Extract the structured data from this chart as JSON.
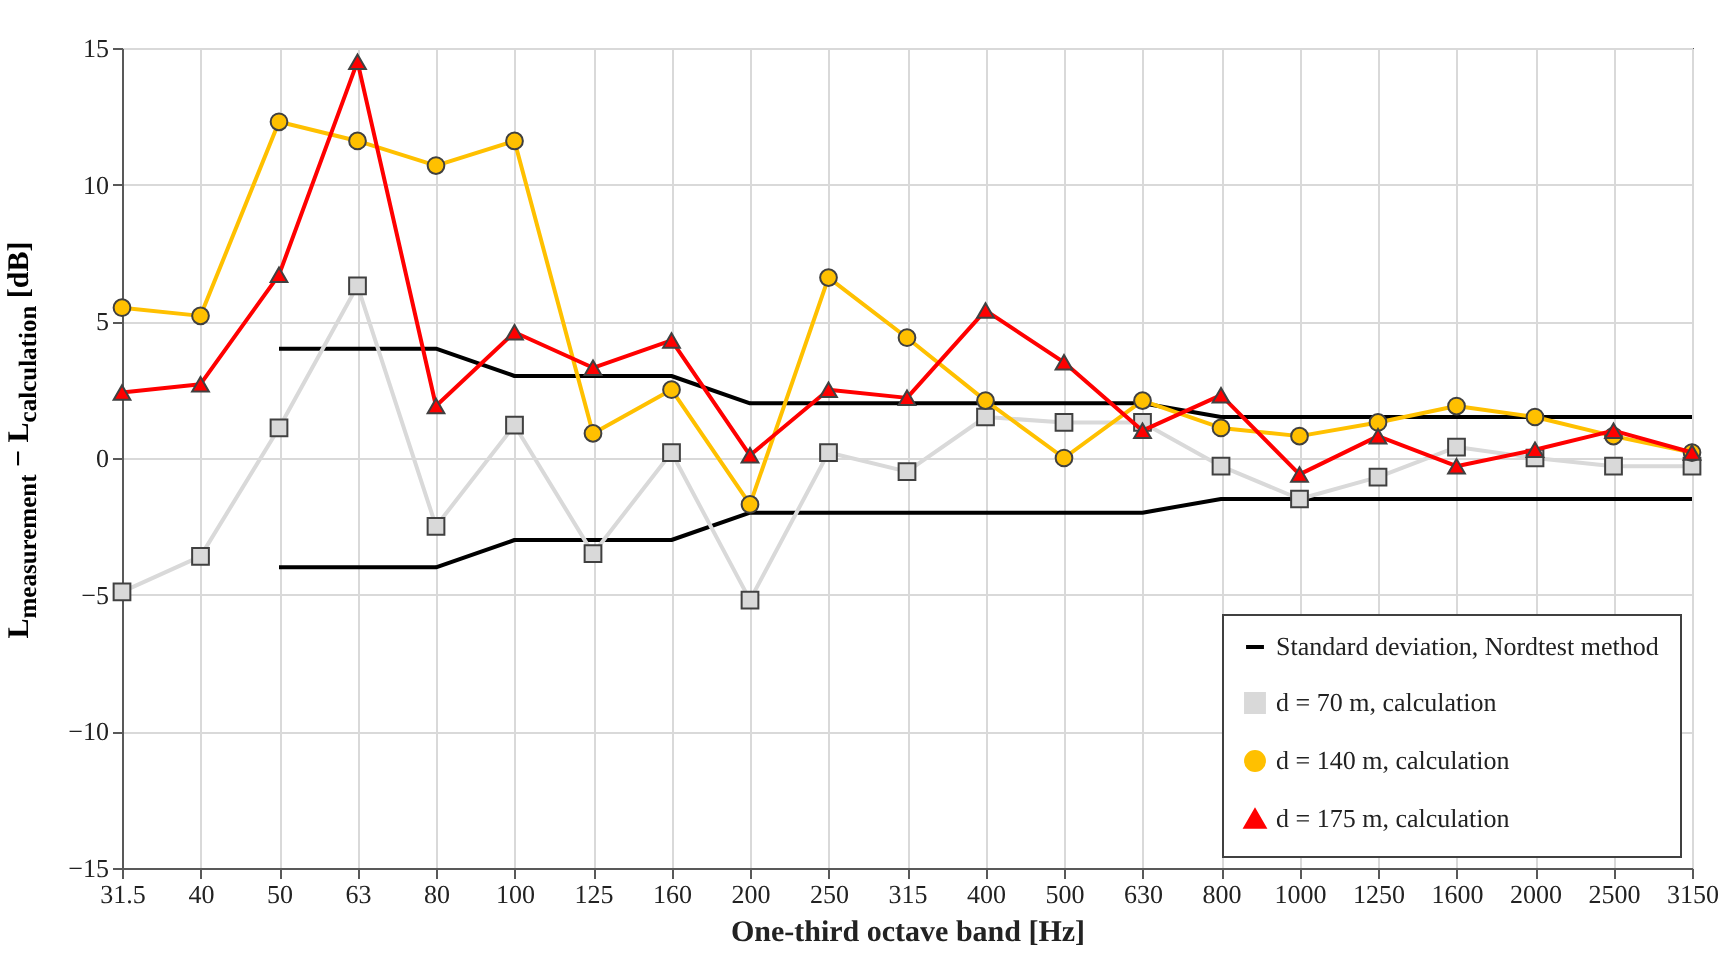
{
  "chart_data": {
    "type": "line",
    "xlabel": "One-third octave band [Hz]",
    "ylabel": "L$_{measurement}$ − L$_{calculation}$ [dB]",
    "categories": [
      "31.5",
      "40",
      "50",
      "63",
      "80",
      "100",
      "125",
      "160",
      "200",
      "250",
      "315",
      "400",
      "500",
      "630",
      "800",
      "1000",
      "1250",
      "1600",
      "2000",
      "2500",
      "3150"
    ],
    "ylim": [
      -15,
      15
    ],
    "yticks": [
      -15,
      -10,
      -5,
      0,
      5,
      10,
      15
    ],
    "grid": true,
    "legend": "bottom right",
    "series": [
      {
        "name": "Standard deviation, Nordtest method",
        "color": "#000000",
        "marker": "none",
        "values": [
          null,
          null,
          4,
          4,
          4,
          3,
          3,
          3,
          2,
          2,
          2,
          2,
          2,
          2,
          1.5,
          1.5,
          1.5,
          1.5,
          1.5,
          1.5,
          1.5
        ]
      },
      {
        "color": "#000000",
        "marker": "none",
        "values": [
          null,
          null,
          -4,
          -4,
          -4,
          -3,
          -3,
          -3,
          -2,
          -2,
          -2,
          -2,
          -2,
          -2,
          -1.5,
          -1.5,
          -1.5,
          -1.5,
          -1.5,
          -1.5,
          -1.5
        ]
      },
      {
        "name": "d = 70 m, calculation",
        "color": "#d9d9d9",
        "marker": "square",
        "values": [
          -4.9,
          -3.6,
          1.1,
          6.3,
          -2.5,
          1.2,
          -3.5,
          0.2,
          -5.2,
          0.2,
          -0.5,
          1.5,
          1.3,
          1.3,
          -0.3,
          -1.5,
          -0.7,
          0.4,
          0.0,
          -0.3,
          -0.3
        ]
      },
      {
        "name": "d = 140 m, calculation",
        "color": "#ffc000",
        "marker": "circle",
        "values": [
          5.5,
          5.2,
          12.3,
          11.6,
          10.7,
          11.6,
          0.9,
          2.5,
          -1.7,
          6.6,
          4.4,
          2.1,
          0.0,
          2.1,
          1.1,
          0.8,
          1.3,
          1.9,
          1.5,
          0.8,
          0.2
        ]
      },
      {
        "name": "d = 175 m, calculation",
        "color": "#ff0000",
        "marker": "triangle",
        "values": [
          2.4,
          2.7,
          6.7,
          14.5,
          1.9,
          4.6,
          3.3,
          4.3,
          0.1,
          2.5,
          2.2,
          5.4,
          3.5,
          1.0,
          2.3,
          -0.6,
          0.8,
          -0.3,
          0.3,
          1.0,
          0.2
        ]
      }
    ]
  }
}
